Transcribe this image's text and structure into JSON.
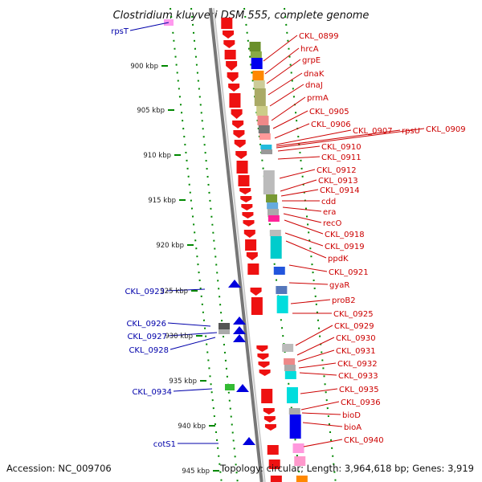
{
  "title": "Clostridium kluyveri DSM 555, complete genome",
  "footer": {
    "accession": "Accession: NC_009706",
    "summary": "Topology: circular; Length: 3,964,618 bp; Genes: 3,919"
  },
  "colors": {
    "forward_gene": "#ee1111",
    "reverse_gene": "#0000dd",
    "backbone": "#999999",
    "tick": "#008800",
    "label_red": "#cc0000",
    "label_blue": "#0000aa"
  },
  "kbp_ticks": [
    "900 kbp",
    "905 kbp",
    "910 kbp",
    "915 kbp",
    "920 kbp",
    "925 kbp",
    "930 kbp",
    "935 kbp",
    "940 kbp",
    "945 kbp"
  ],
  "right_labels": [
    "CKL_0899",
    "hrcA",
    "grpE",
    "dnaK",
    "dnaJ",
    "prmA",
    "CKL_0905",
    "CKL_0906",
    "CKL_0907",
    "rpsU",
    "CKL_0909",
    "CKL_0910",
    "CKL_0911",
    "CKL_0912",
    "CKL_0913",
    "CKL_0914",
    "cdd",
    "era",
    "recO",
    "CKL_0918",
    "CKL_0919",
    "ppdK",
    "CKL_0921",
    "gyaR",
    "proB2",
    "CKL_0925",
    "CKL_0929",
    "CKL_0930",
    "CKL_0931",
    "CKL_0932",
    "CKL_0933",
    "CKL_0935",
    "CKL_0936",
    "bioD",
    "bioA",
    "CKL_0940"
  ],
  "left_labels": [
    "rpsT",
    "CKL_0923",
    "CKL_0926",
    "CKL_0927",
    "CKL_0928",
    "CKL_0934",
    "cotS1"
  ]
}
